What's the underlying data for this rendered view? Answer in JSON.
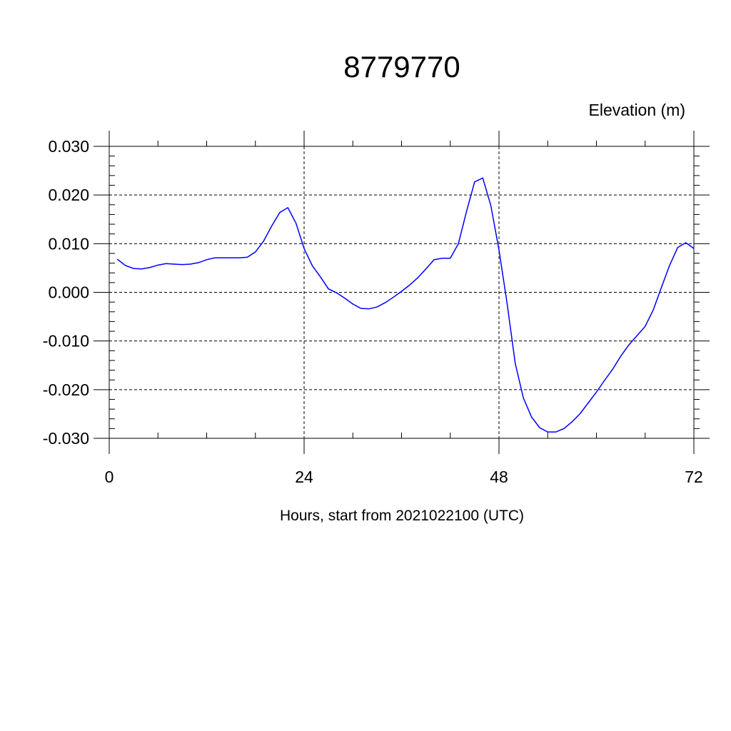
{
  "chart_data": {
    "type": "line",
    "title": "8779770",
    "y_label": "Elevation (m)",
    "x_label": "Hours, start from 2021022100 (UTC)",
    "x": [
      1,
      2,
      3,
      4,
      5,
      6,
      7,
      8,
      9,
      10,
      11,
      12,
      13,
      14,
      15,
      16,
      17,
      18,
      19,
      20,
      21,
      22,
      23,
      24,
      25,
      26,
      27,
      28,
      29,
      30,
      31,
      32,
      33,
      34,
      35,
      36,
      37,
      38,
      39,
      40,
      41,
      42,
      43,
      44,
      45,
      46,
      47,
      48,
      49,
      50,
      51,
      52,
      53,
      54,
      55,
      56,
      57,
      58,
      59,
      60,
      61,
      62,
      63,
      64,
      65,
      66,
      67,
      68,
      69,
      70,
      71,
      72
    ],
    "series": [
      {
        "color": "#0000ff",
        "values": [
          0.0068,
          0.0055,
          0.0049,
          0.0048,
          0.0051,
          0.0056,
          0.0059,
          0.0058,
          0.0057,
          0.0058,
          0.0061,
          0.0067,
          0.0071,
          0.0071,
          0.0071,
          0.0071,
          0.0072,
          0.0083,
          0.0105,
          0.0136,
          0.0164,
          0.0174,
          0.0142,
          0.009,
          0.0055,
          0.0032,
          0.0007,
          -0.0001,
          -0.0012,
          -0.0024,
          -0.0033,
          -0.0034,
          -0.003,
          -0.0021,
          -0.001,
          0.0002,
          0.0015,
          0.003,
          0.0048,
          0.0067,
          0.007,
          0.007,
          0.01,
          0.0166,
          0.0227,
          0.0235,
          0.0178,
          0.0087,
          -0.0023,
          -0.0146,
          -0.0217,
          -0.0256,
          -0.0278,
          -0.0287,
          -0.0287,
          -0.028,
          -0.0266,
          -0.0249,
          -0.0227,
          -0.0205,
          -0.0181,
          -0.0158,
          -0.0131,
          -0.0108,
          -0.0089,
          -0.007,
          -0.0036,
          0.001,
          0.0055,
          0.0092,
          0.0102,
          0.009
        ]
      }
    ],
    "xlim": [
      0,
      72
    ],
    "xticks": [
      0,
      24,
      48,
      72
    ],
    "ylim": [
      -0.03,
      0.03
    ],
    "yticks": [
      {
        "value": -0.03,
        "label": "-0.030"
      },
      {
        "value": -0.02,
        "label": "-0.020"
      },
      {
        "value": -0.01,
        "label": "-0.010"
      },
      {
        "value": 0,
        "label": "0.000"
      },
      {
        "value": 0.01,
        "label": "0.010"
      },
      {
        "value": 0.02,
        "label": "0.020"
      },
      {
        "value": 0.03,
        "label": "0.030"
      }
    ],
    "grid": true
  }
}
